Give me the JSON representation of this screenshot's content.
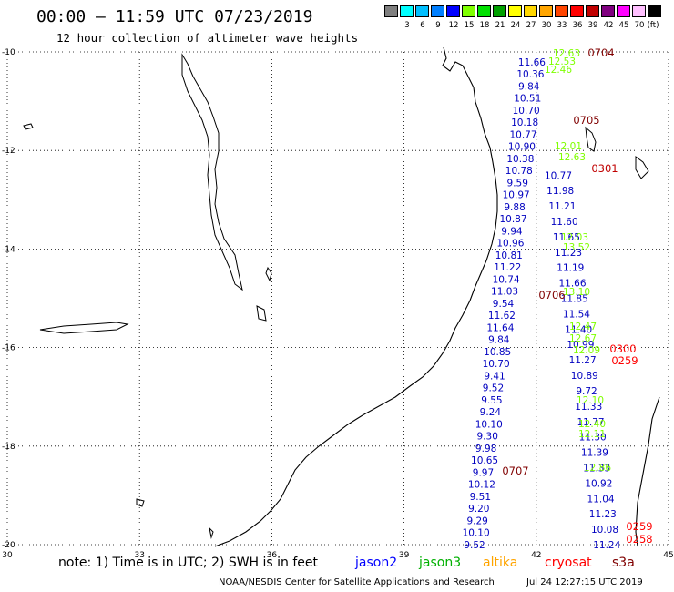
{
  "header": {
    "title": "00:00 – 11:59 UTC 07/23/2019",
    "subtitle": "12 hour collection of altimeter wave heights"
  },
  "colorbar": {
    "unit": "(ft)",
    "swatches": [
      {
        "color": "#7f7f7f",
        "label": ""
      },
      {
        "color": "#00ffff",
        "label": "3"
      },
      {
        "color": "#00bfff",
        "label": "6"
      },
      {
        "color": "#007fff",
        "label": "9"
      },
      {
        "color": "#0000ff",
        "label": "12"
      },
      {
        "color": "#7fff00",
        "label": "15"
      },
      {
        "color": "#00e000",
        "label": "18"
      },
      {
        "color": "#00a000",
        "label": "21"
      },
      {
        "color": "#ffff00",
        "label": "24"
      },
      {
        "color": "#ffd700",
        "label": "27"
      },
      {
        "color": "#ffa500",
        "label": "30"
      },
      {
        "color": "#ff4500",
        "label": "33"
      },
      {
        "color": "#ff0000",
        "label": "36"
      },
      {
        "color": "#c00000",
        "label": "39"
      },
      {
        "color": "#800080",
        "label": "42"
      },
      {
        "color": "#ff00ff",
        "label": "45"
      },
      {
        "color": "#ffc0ff",
        "label": "70"
      },
      {
        "color": "#000000",
        "label": ""
      }
    ]
  },
  "map": {
    "lon_range": [
      30,
      45
    ],
    "lat_range": [
      -20,
      -10
    ],
    "lon_ticks": [
      "30",
      "33",
      "36",
      "39",
      "42",
      "45"
    ],
    "lat_ticks": [
      "-10",
      "-12",
      "-14",
      "-16",
      "-18",
      "-20"
    ],
    "grid": "dotted"
  },
  "tracks": {
    "jason2_east": {
      "color": "#0000c0",
      "lon_start": 41.9,
      "lat_start": -10.2,
      "lon_end": 40.6,
      "lat_end": -20.0,
      "values": [
        "11.66",
        "10.36",
        "9.84",
        "10.51",
        "10.70",
        "10.18",
        "10.77",
        "10.90",
        "10.38",
        "10.78",
        "9.59",
        "10.97",
        "9.88",
        "10.87",
        "9.94",
        "10.96",
        "10.81",
        "11.22",
        "10.74",
        "11.03",
        "9.54",
        "11.62",
        "11.64",
        "9.84",
        "10.85",
        "10.70",
        "9.41",
        "9.52",
        "9.55",
        "9.24",
        "10.10",
        "9.30",
        "9.98",
        "10.65",
        "9.97",
        "10.12",
        "9.51",
        "9.20",
        "9.29",
        "10.10",
        "9.52"
      ]
    },
    "jason2_west": {
      "color": "#0000c0",
      "lon_start": 42.5,
      "lat_start": -12.5,
      "lon_end": 43.6,
      "lat_end": -20.0,
      "values": [
        "10.77",
        "11.98",
        "11.21",
        "11.60",
        "11.65",
        "11.23",
        "11.19",
        "11.66",
        "11.85",
        "11.54",
        "11.40",
        "10.99",
        "11.27",
        "10.89",
        "9.72",
        "11.33",
        "11.77",
        "11.30",
        "11.39",
        "11.33",
        "10.92",
        "11.04",
        "11.23",
        "10.08",
        "11.24"
      ]
    },
    "jason3": {
      "color": "#7fff00",
      "values": [
        "12.63",
        "12.53",
        "12.46",
        "12.01",
        "12.63",
        "12.03",
        "13.52",
        "13.10",
        "12.47",
        "12.67",
        "12.09",
        "12.10",
        "12.40",
        "12.11",
        "12.86"
      ]
    },
    "cryosat_labels": [
      {
        "text": "0704",
        "color": "#800000"
      },
      {
        "text": "0705",
        "color": "#800000"
      },
      {
        "text": "0301",
        "color": "#c00000"
      },
      {
        "text": "0706",
        "color": "#800000"
      },
      {
        "text": "0707",
        "color": "#800000"
      },
      {
        "text": "0300",
        "color": "#ff0000"
      },
      {
        "text": "0259",
        "color": "#ff0000"
      },
      {
        "text": "0259",
        "color": "#ff0000"
      },
      {
        "text": "0258",
        "color": "#ff0000"
      }
    ]
  },
  "legend": {
    "note": "note: 1) Time is in UTC; 2) SWH is in feet",
    "satellites": [
      {
        "name": "jason2",
        "color": "#0000ff"
      },
      {
        "name": "jason3",
        "color": "#00b000"
      },
      {
        "name": "altika",
        "color": "#ffa500"
      },
      {
        "name": "cryosat",
        "color": "#ff0000"
      },
      {
        "name": "s3a",
        "color": "#800000"
      }
    ]
  },
  "footer": {
    "credit": "NOAA/NESDIS Center for Satellite Applications and Research",
    "timestamp": "Jul 24 12:27:15 UTC 2019"
  }
}
